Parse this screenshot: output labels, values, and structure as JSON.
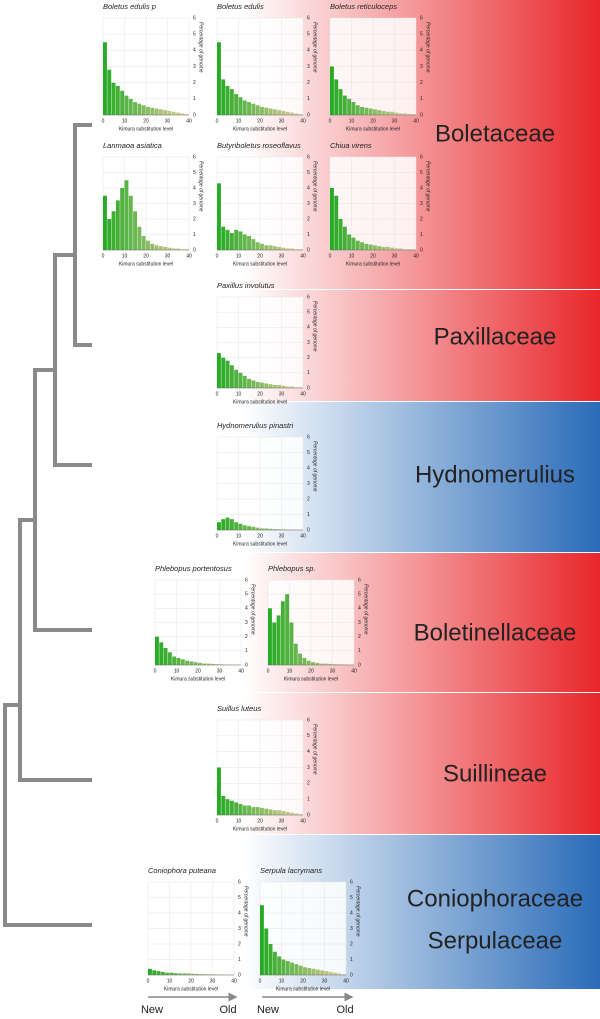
{
  "chart_data": [
    {
      "type": "histogram",
      "title": "Boletus edulis p",
      "xlabel": "Kimura substitution level",
      "ylabel": "Percentage of genome",
      "color": "#22aa22",
      "bins": [
        0,
        2,
        4,
        6,
        8,
        10,
        12,
        14,
        16,
        18,
        20,
        22,
        24,
        26,
        28,
        30,
        32,
        34,
        36,
        38,
        40
      ],
      "values": [
        4.5,
        2.8,
        2.0,
        1.8,
        1.5,
        1.2,
        1.0,
        0.8,
        0.7,
        0.6,
        0.5,
        0.45,
        0.4,
        0.35,
        0.3,
        0.25,
        0.2,
        0.15,
        0.1,
        0.05
      ],
      "xlim": [
        0,
        40
      ],
      "ylim": [
        0,
        6
      ],
      "xticks": [
        0,
        10,
        20,
        30,
        40
      ],
      "yticks": [
        0,
        1,
        2,
        3,
        4,
        5,
        6
      ],
      "grid": true
    },
    {
      "type": "histogram",
      "title": "Boletus edulis",
      "xlabel": "Kimura substitution level",
      "ylabel": "Percentage of genome",
      "color": "#22aa22",
      "bins": [
        0,
        2,
        4,
        6,
        8,
        10,
        12,
        14,
        16,
        18,
        20,
        22,
        24,
        26,
        28,
        30,
        32,
        34,
        36,
        38,
        40
      ],
      "values": [
        4.5,
        2.2,
        1.8,
        1.6,
        1.3,
        1.1,
        0.9,
        0.8,
        0.7,
        0.6,
        0.5,
        0.45,
        0.4,
        0.35,
        0.3,
        0.25,
        0.2,
        0.15,
        0.1,
        0.05
      ],
      "xlim": [
        0,
        40
      ],
      "ylim": [
        0,
        6
      ],
      "xticks": [
        0,
        10,
        20,
        30,
        40
      ],
      "yticks": [
        0,
        1,
        2,
        3,
        4,
        5,
        6
      ],
      "grid": true
    },
    {
      "type": "histogram",
      "title": "Boletus reticuloceps",
      "xlabel": "Kimura substitution level",
      "ylabel": "Percentage of genome",
      "color": "#22aa22",
      "bins": [
        0,
        2,
        4,
        6,
        8,
        10,
        12,
        14,
        16,
        18,
        20,
        22,
        24,
        26,
        28,
        30,
        32,
        34,
        36,
        38,
        40
      ],
      "values": [
        3.0,
        2.2,
        1.6,
        1.2,
        1.0,
        0.8,
        0.6,
        0.5,
        0.45,
        0.4,
        0.35,
        0.3,
        0.25,
        0.2,
        0.2,
        0.15,
        0.1,
        0.1,
        0.05,
        0.05
      ],
      "xlim": [
        0,
        40
      ],
      "ylim": [
        0,
        6
      ],
      "xticks": [
        0,
        10,
        20,
        30,
        40
      ],
      "yticks": [
        0,
        1,
        2,
        3,
        4,
        5,
        6
      ],
      "grid": true
    },
    {
      "type": "histogram",
      "title": "Lanmaoa asiatica",
      "xlabel": "Kimura substitution level",
      "ylabel": "Percentage of genome",
      "color": "#22aa22",
      "bins": [
        0,
        2,
        4,
        6,
        8,
        10,
        12,
        14,
        16,
        18,
        20,
        22,
        24,
        26,
        28,
        30,
        32,
        34,
        36,
        38,
        40
      ],
      "values": [
        3.5,
        2.0,
        2.5,
        3.2,
        4.0,
        4.5,
        3.5,
        2.5,
        1.5,
        0.9,
        0.6,
        0.4,
        0.3,
        0.25,
        0.2,
        0.15,
        0.1,
        0.1,
        0.05,
        0.05
      ],
      "xlim": [
        0,
        40
      ],
      "ylim": [
        0,
        6
      ],
      "xticks": [
        0,
        10,
        20,
        30,
        40
      ],
      "yticks": [
        0,
        1,
        2,
        3,
        4,
        5,
        6
      ],
      "grid": true
    },
    {
      "type": "histogram",
      "title": "Butyriboletus roseoflavus",
      "xlabel": "Kimura substitution level",
      "ylabel": "Percentage of genome",
      "color": "#22aa22",
      "bins": [
        0,
        2,
        4,
        6,
        8,
        10,
        12,
        14,
        16,
        18,
        20,
        22,
        24,
        26,
        28,
        30,
        32,
        34,
        36,
        38,
        40
      ],
      "values": [
        4.3,
        1.5,
        1.3,
        1.1,
        1.3,
        1.2,
        1.0,
        0.9,
        0.7,
        0.5,
        0.4,
        0.3,
        0.3,
        0.25,
        0.2,
        0.15,
        0.1,
        0.1,
        0.05,
        0.05
      ],
      "xlim": [
        0,
        40
      ],
      "ylim": [
        0,
        6
      ],
      "xticks": [
        0,
        10,
        20,
        30,
        40
      ],
      "yticks": [
        0,
        1,
        2,
        3,
        4,
        5,
        6
      ],
      "grid": true
    },
    {
      "type": "histogram",
      "title": "Chiua virens",
      "xlabel": "Kimura substitution level",
      "ylabel": "Percentage of genome",
      "color": "#22aa22",
      "bins": [
        0,
        2,
        4,
        6,
        8,
        10,
        12,
        14,
        16,
        18,
        20,
        22,
        24,
        26,
        28,
        30,
        32,
        34,
        36,
        38,
        40
      ],
      "values": [
        4.0,
        3.5,
        2.0,
        1.5,
        1.0,
        0.8,
        0.6,
        0.5,
        0.4,
        0.35,
        0.3,
        0.25,
        0.2,
        0.2,
        0.15,
        0.1,
        0.1,
        0.05,
        0.05,
        0.05
      ],
      "xlim": [
        0,
        40
      ],
      "ylim": [
        0,
        6
      ],
      "xticks": [
        0,
        10,
        20,
        30,
        40
      ],
      "yticks": [
        0,
        1,
        2,
        3,
        4,
        5,
        6
      ],
      "grid": true
    },
    {
      "type": "histogram",
      "title": "Paxillus involutus",
      "xlabel": "Kimura substitution level",
      "ylabel": "Percentage of genome",
      "color": "#22aa22",
      "bins": [
        0,
        2,
        4,
        6,
        8,
        10,
        12,
        14,
        16,
        18,
        20,
        22,
        24,
        26,
        28,
        30,
        32,
        34,
        36,
        38,
        40
      ],
      "values": [
        2.3,
        2.0,
        1.8,
        1.5,
        1.2,
        1.0,
        0.8,
        0.6,
        0.5,
        0.4,
        0.35,
        0.3,
        0.25,
        0.2,
        0.2,
        0.15,
        0.1,
        0.1,
        0.05,
        0.05
      ],
      "xlim": [
        0,
        40
      ],
      "ylim": [
        0,
        6
      ],
      "xticks": [
        0,
        10,
        20,
        30,
        40
      ],
      "yticks": [
        0,
        1,
        2,
        3,
        4,
        5,
        6
      ],
      "grid": true
    },
    {
      "type": "histogram",
      "title": "Hydnomerulius pinastri",
      "xlabel": "Kimura substitution level",
      "ylabel": "Percentage of genome",
      "color": "#22aa22",
      "bins": [
        0,
        2,
        4,
        6,
        8,
        10,
        12,
        14,
        16,
        18,
        20,
        22,
        24,
        26,
        28,
        30,
        32,
        34,
        36,
        38,
        40
      ],
      "values": [
        0.5,
        0.7,
        0.8,
        0.7,
        0.5,
        0.4,
        0.3,
        0.25,
        0.2,
        0.15,
        0.1,
        0.1,
        0.08,
        0.06,
        0.05,
        0.04,
        0.03,
        0.02,
        0.02,
        0.01
      ],
      "xlim": [
        0,
        40
      ],
      "ylim": [
        0,
        6
      ],
      "xticks": [
        0,
        10,
        20,
        30,
        40
      ],
      "yticks": [
        0,
        1,
        2,
        3,
        4,
        5,
        6
      ],
      "grid": true
    },
    {
      "type": "histogram",
      "title": "Phlebopus portentosus",
      "xlabel": "Kimura substitution level",
      "ylabel": "Percentage of genome",
      "color": "#22aa22",
      "bins": [
        0,
        2,
        4,
        6,
        8,
        10,
        12,
        14,
        16,
        18,
        20,
        22,
        24,
        26,
        28,
        30,
        32,
        34,
        36,
        38,
        40
      ],
      "values": [
        2.0,
        1.6,
        1.2,
        0.9,
        0.6,
        0.5,
        0.4,
        0.3,
        0.25,
        0.2,
        0.15,
        0.1,
        0.1,
        0.08,
        0.06,
        0.05,
        0.04,
        0.03,
        0.02,
        0.02
      ],
      "xlim": [
        0,
        40
      ],
      "ylim": [
        0,
        6
      ],
      "xticks": [
        0,
        10,
        20,
        30,
        40
      ],
      "yticks": [
        0,
        1,
        2,
        3,
        4,
        5,
        6
      ],
      "grid": true
    },
    {
      "type": "histogram",
      "title": "Phlebopus sp.",
      "xlabel": "Kimura substitution level",
      "ylabel": "Percentage of genome",
      "color": "#22aa22",
      "bins": [
        0,
        2,
        4,
        6,
        8,
        10,
        12,
        14,
        16,
        18,
        20,
        22,
        24,
        26,
        28,
        30,
        32,
        34,
        36,
        38,
        40
      ],
      "values": [
        4.0,
        3.0,
        3.5,
        4.5,
        5.0,
        3.0,
        1.5,
        0.8,
        0.5,
        0.3,
        0.2,
        0.15,
        0.1,
        0.1,
        0.08,
        0.06,
        0.05,
        0.04,
        0.03,
        0.02
      ],
      "xlim": [
        0,
        40
      ],
      "ylim": [
        0,
        6
      ],
      "xticks": [
        0,
        10,
        20,
        30,
        40
      ],
      "yticks": [
        0,
        1,
        2,
        3,
        4,
        5,
        6
      ],
      "grid": true
    },
    {
      "type": "histogram",
      "title": "Suillus luteus",
      "xlabel": "Kimura substitution level",
      "ylabel": "Percentage of genome",
      "color": "#22aa22",
      "bins": [
        0,
        2,
        4,
        6,
        8,
        10,
        12,
        14,
        16,
        18,
        20,
        22,
        24,
        26,
        28,
        30,
        32,
        34,
        36,
        38,
        40
      ],
      "values": [
        3.0,
        1.2,
        1.0,
        0.9,
        0.8,
        0.7,
        0.6,
        0.6,
        0.5,
        0.5,
        0.45,
        0.4,
        0.35,
        0.3,
        0.3,
        0.25,
        0.2,
        0.15,
        0.1,
        0.05
      ],
      "xlim": [
        0,
        40
      ],
      "ylim": [
        0,
        6
      ],
      "xticks": [
        0,
        10,
        20,
        30,
        40
      ],
      "yticks": [
        0,
        1,
        2,
        3,
        4,
        5,
        6
      ],
      "grid": true
    },
    {
      "type": "histogram",
      "title": "Coniophora puteana",
      "xlabel": "Kimura substitution level",
      "ylabel": "Percentage of genome",
      "color": "#22aa22",
      "bins": [
        0,
        2,
        4,
        6,
        8,
        10,
        12,
        14,
        16,
        18,
        20,
        22,
        24,
        26,
        28,
        30,
        32,
        34,
        36,
        38,
        40
      ],
      "values": [
        0.4,
        0.3,
        0.25,
        0.2,
        0.15,
        0.15,
        0.12,
        0.1,
        0.1,
        0.1,
        0.08,
        0.07,
        0.06,
        0.05,
        0.05,
        0.04,
        0.03,
        0.03,
        0.02,
        0.02
      ],
      "xlim": [
        0,
        40
      ],
      "ylim": [
        0,
        6
      ],
      "xticks": [
        0,
        10,
        20,
        30,
        40
      ],
      "yticks": [
        0,
        1,
        2,
        3,
        4,
        5,
        6
      ],
      "grid": true
    },
    {
      "type": "histogram",
      "title": "Serpula lacrymans",
      "xlabel": "Kimura substitution level",
      "ylabel": "Percentage of genome",
      "color": "#22aa22",
      "bins": [
        0,
        2,
        4,
        6,
        8,
        10,
        12,
        14,
        16,
        18,
        20,
        22,
        24,
        26,
        28,
        30,
        32,
        34,
        36,
        38,
        40
      ],
      "values": [
        4.5,
        3.0,
        2.0,
        1.5,
        1.2,
        1.0,
        0.9,
        0.8,
        0.7,
        0.6,
        0.5,
        0.45,
        0.4,
        0.35,
        0.3,
        0.25,
        0.2,
        0.15,
        0.1,
        0.05
      ],
      "xlim": [
        0,
        40
      ],
      "ylim": [
        0,
        6
      ],
      "xticks": [
        0,
        10,
        20,
        30,
        40
      ],
      "yticks": [
        0,
        1,
        2,
        3,
        4,
        5,
        6
      ],
      "grid": true
    }
  ],
  "groups": [
    {
      "labels": [
        "Boletaceae"
      ],
      "color": "#e8262a"
    },
    {
      "labels": [
        "Paxillaceae"
      ],
      "color": "#e8262a"
    },
    {
      "labels": [
        "Hydnomerulius"
      ],
      "color": "#2a6bb8"
    },
    {
      "labels": [
        "Boletinellaceae"
      ],
      "color": "#e8262a"
    },
    {
      "labels": [
        "Suillineae"
      ],
      "color": "#e8262a"
    },
    {
      "labels": [
        "Coniophoraceae",
        "Serpulaceae"
      ],
      "color": "#2a6bb8"
    }
  ],
  "arrows": [
    {
      "start": "New",
      "end": "Old"
    },
    {
      "start": "New",
      "end": "Old"
    }
  ]
}
